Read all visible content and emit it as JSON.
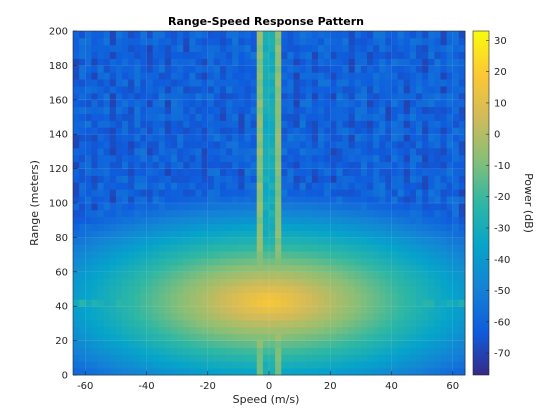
{
  "chart_data": {
    "type": "heatmap",
    "title": "Range-Speed Response Pattern",
    "xlabel": "Speed (m/s)",
    "ylabel": "Range (meters)",
    "colorbar_label": "Power (dB)",
    "xlim": [
      -64,
      64
    ],
    "ylim": [
      0,
      200
    ],
    "clim": [
      -77,
      33
    ],
    "xticks": [
      -60,
      -40,
      -20,
      0,
      20,
      40,
      60
    ],
    "yticks": [
      0,
      20,
      40,
      60,
      80,
      100,
      120,
      140,
      160,
      180,
      200
    ],
    "cticks": [
      30,
      20,
      10,
      0,
      -10,
      -20,
      -30,
      -40,
      -50,
      -60,
      -70
    ],
    "colormap": "parula",
    "background_level_db": -60,
    "target": {
      "speed": 0,
      "range": 43,
      "peak_db": 18
    },
    "ridge_range_db": -30,
    "ridge_speed_db": -35,
    "grid": true
  }
}
